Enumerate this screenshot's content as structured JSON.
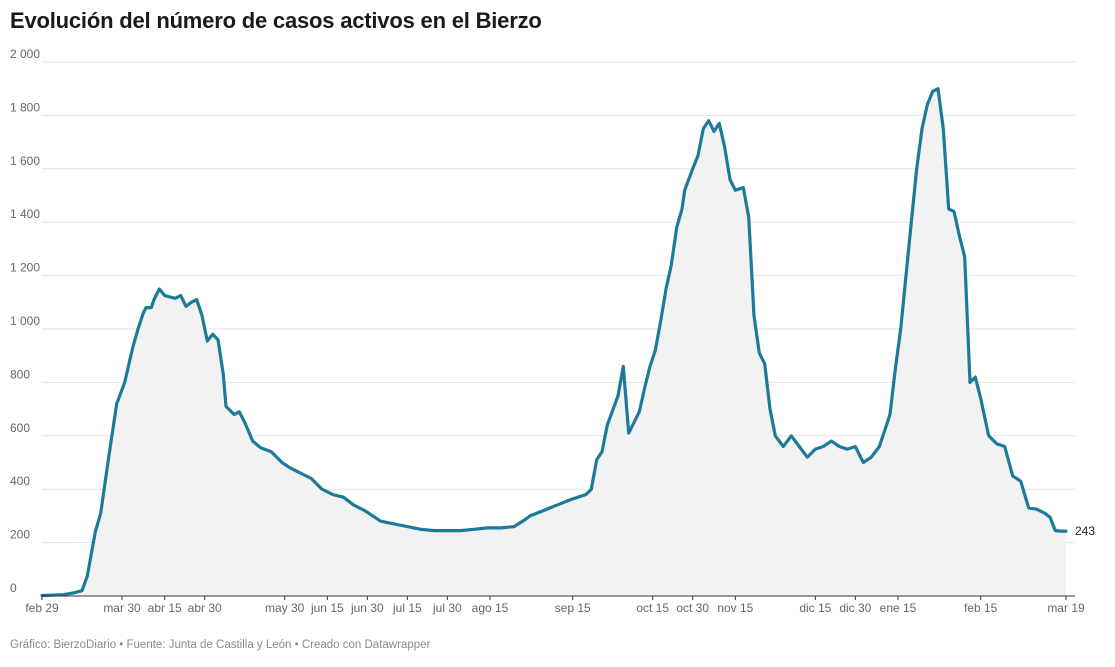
{
  "title": "Evolución del número de casos activos en el Bierzo",
  "footer": {
    "source_text": "Gráfico: BierzoDiario • Fuente: Junta de Castilla y León • Creado con Datawrapper"
  },
  "colors": {
    "line": "#1d7a9a",
    "area": "#f2f2f2",
    "grid": "#e3e3e3",
    "axis": "#333333"
  },
  "chart_data": {
    "type": "area",
    "title": "Evolución del número de casos activos en el Bierzo",
    "xlabel": "",
    "ylabel": "",
    "ylim": [
      0,
      2000
    ],
    "yticks": [
      {
        "value": 0,
        "label": "0"
      },
      {
        "value": 200,
        "label": "200"
      },
      {
        "value": 400,
        "label": "400"
      },
      {
        "value": 600,
        "label": "600"
      },
      {
        "value": 800,
        "label": "800"
      },
      {
        "value": 1000,
        "label": "1 000"
      },
      {
        "value": 1200,
        "label": "1 200"
      },
      {
        "value": 1400,
        "label": "1 400"
      },
      {
        "value": 1600,
        "label": "1 600"
      },
      {
        "value": 1800,
        "label": "1 800"
      },
      {
        "value": 2000,
        "label": "2 000"
      }
    ],
    "xlim": [
      "2020-02-29",
      "2021-03-19"
    ],
    "xticks": [
      {
        "date": "2020-02-29",
        "label": "feb 29"
      },
      {
        "date": "2020-03-30",
        "label": "mar 30"
      },
      {
        "date": "2020-04-15",
        "label": "abr 15"
      },
      {
        "date": "2020-04-30",
        "label": "abr 30"
      },
      {
        "date": "2020-05-30",
        "label": "may 30"
      },
      {
        "date": "2020-06-15",
        "label": "jun 15"
      },
      {
        "date": "2020-06-30",
        "label": "jun 30"
      },
      {
        "date": "2020-07-15",
        "label": "jul 15"
      },
      {
        "date": "2020-07-30",
        "label": "jul 30"
      },
      {
        "date": "2020-08-15",
        "label": "ago 15"
      },
      {
        "date": "2020-09-15",
        "label": "sep 15"
      },
      {
        "date": "2020-10-15",
        "label": "oct 15"
      },
      {
        "date": "2020-10-30",
        "label": "oct 30"
      },
      {
        "date": "2020-11-15",
        "label": "nov 15"
      },
      {
        "date": "2020-12-15",
        "label": "dic 15"
      },
      {
        "date": "2020-12-30",
        "label": "dic 30"
      },
      {
        "date": "2021-01-15",
        "label": "ene 15"
      },
      {
        "date": "2021-02-15",
        "label": "feb 15"
      },
      {
        "date": "2021-03-19",
        "label": "mar 19"
      }
    ],
    "end_label": "243",
    "series": [
      {
        "x": [
          "2020-02-29",
          "2020-03-08",
          "2020-03-12",
          "2020-03-15",
          "2020-03-17",
          "2020-03-20",
          "2020-03-22",
          "2020-03-25",
          "2020-03-28",
          "2020-03-31",
          "2020-04-03",
          "2020-04-05",
          "2020-04-07",
          "2020-04-08",
          "2020-04-10",
          "2020-04-11",
          "2020-04-13",
          "2020-04-15",
          "2020-04-17",
          "2020-04-19",
          "2020-04-21",
          "2020-04-23",
          "2020-04-25",
          "2020-04-27",
          "2020-04-29",
          "2020-05-01",
          "2020-05-03",
          "2020-05-05",
          "2020-05-07",
          "2020-05-08",
          "2020-05-11",
          "2020-05-13",
          "2020-05-15",
          "2020-05-18",
          "2020-05-21",
          "2020-05-25",
          "2020-05-29",
          "2020-06-01",
          "2020-06-05",
          "2020-06-09",
          "2020-06-13",
          "2020-06-17",
          "2020-06-21",
          "2020-06-25",
          "2020-06-29",
          "2020-07-05",
          "2020-07-10",
          "2020-07-15",
          "2020-07-20",
          "2020-07-25",
          "2020-07-30",
          "2020-08-04",
          "2020-08-09",
          "2020-08-14",
          "2020-08-19",
          "2020-08-24",
          "2020-08-28",
          "2020-08-30",
          "2020-09-04",
          "2020-09-09",
          "2020-09-14",
          "2020-09-17",
          "2020-09-20",
          "2020-09-22",
          "2020-09-24",
          "2020-09-26",
          "2020-09-28",
          "2020-10-02",
          "2020-10-04",
          "2020-10-06",
          "2020-10-08",
          "2020-10-10",
          "2020-10-12",
          "2020-10-14",
          "2020-10-16",
          "2020-10-18",
          "2020-10-20",
          "2020-10-22",
          "2020-10-24",
          "2020-10-26",
          "2020-10-27",
          "2020-10-30",
          "2020-11-01",
          "2020-11-03",
          "2020-11-05",
          "2020-11-07",
          "2020-11-09",
          "2020-11-11",
          "2020-11-13",
          "2020-11-15",
          "2020-11-18",
          "2020-11-20",
          "2020-11-22",
          "2020-11-24",
          "2020-11-26",
          "2020-11-28",
          "2020-11-30",
          "2020-12-03",
          "2020-12-06",
          "2020-12-09",
          "2020-12-12",
          "2020-12-15",
          "2020-12-18",
          "2020-12-21",
          "2020-12-24",
          "2020-12-27",
          "2020-12-30",
          "2021-01-02",
          "2021-01-05",
          "2021-01-08",
          "2021-01-10",
          "2021-01-12",
          "2021-01-14",
          "2021-01-16",
          "2021-01-18",
          "2021-01-20",
          "2021-01-22",
          "2021-01-24",
          "2021-01-26",
          "2021-01-28",
          "2021-01-30",
          "2021-02-01",
          "2021-02-03",
          "2021-02-05",
          "2021-02-07",
          "2021-02-09",
          "2021-02-11",
          "2021-02-13",
          "2021-02-15",
          "2021-02-18",
          "2021-02-21",
          "2021-02-24",
          "2021-02-27",
          "2021-03-02",
          "2021-03-05",
          "2021-03-08",
          "2021-03-11",
          "2021-03-13",
          "2021-03-15",
          "2021-03-17",
          "2021-03-19"
        ],
        "y": [
          2,
          5,
          12,
          20,
          75,
          240,
          310,
          520,
          720,
          800,
          930,
          1000,
          1060,
          1080,
          1080,
          1110,
          1150,
          1125,
          1120,
          1115,
          1125,
          1085,
          1100,
          1110,
          1050,
          955,
          980,
          960,
          830,
          710,
          680,
          690,
          650,
          580,
          555,
          540,
          500,
          480,
          460,
          440,
          400,
          380,
          370,
          340,
          320,
          280,
          270,
          260,
          250,
          245,
          245,
          245,
          250,
          255,
          255,
          260,
          285,
          300,
          320,
          340,
          360,
          370,
          380,
          400,
          510,
          540,
          640,
          750,
          860,
          610,
          650,
          690,
          780,
          860,
          920,
          1030,
          1150,
          1240,
          1380,
          1450,
          1520,
          1600,
          1650,
          1750,
          1780,
          1740,
          1770,
          1680,
          1560,
          1520,
          1530,
          1420,
          1050,
          910,
          870,
          700,
          600,
          560,
          600,
          560,
          520,
          550,
          560,
          580,
          560,
          550,
          560,
          500,
          520,
          560,
          620,
          680,
          850,
          1000,
          1200,
          1400,
          1600,
          1750,
          1840,
          1890,
          1900,
          1750,
          1450,
          1440,
          1350,
          1270,
          800,
          820,
          740,
          600,
          570,
          560,
          450,
          430,
          330,
          325,
          310,
          295,
          245,
          243,
          243
        ]
      }
    ]
  }
}
